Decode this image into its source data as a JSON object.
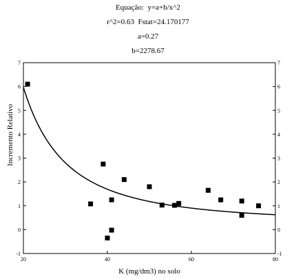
{
  "header": {
    "equation": "Equação:  y=a+b/x^2",
    "stats": "r^2=0.63  Fstat=24.170177",
    "a": "a=0.27",
    "b": "b=2278.67"
  },
  "chart_data": {
    "type": "scatter",
    "xlabel": "K (mg/dm3) no solo",
    "ylabel": "Incremento Relativo",
    "xlim": [
      20,
      80
    ],
    "ylim": [
      -1,
      7
    ],
    "xticks": [
      20,
      40,
      60,
      80
    ],
    "yticks": [
      -1,
      0,
      1,
      2,
      3,
      4,
      5,
      6,
      7
    ],
    "right_axis_ticks": true,
    "grid": false,
    "points": [
      {
        "x": 21,
        "y": 6.1
      },
      {
        "x": 36,
        "y": 1.08
      },
      {
        "x": 39,
        "y": 2.75
      },
      {
        "x": 40,
        "y": -0.35
      },
      {
        "x": 41,
        "y": 1.25
      },
      {
        "x": 41,
        "y": -0.02
      },
      {
        "x": 44,
        "y": 2.1
      },
      {
        "x": 50,
        "y": 1.8
      },
      {
        "x": 53,
        "y": 1.03
      },
      {
        "x": 56,
        "y": 1.02
      },
      {
        "x": 57,
        "y": 1.1
      },
      {
        "x": 64,
        "y": 1.65
      },
      {
        "x": 67,
        "y": 1.25
      },
      {
        "x": 72,
        "y": 1.2
      },
      {
        "x": 72,
        "y": 0.6
      },
      {
        "x": 76,
        "y": 1.0
      }
    ],
    "fit": {
      "model": "y=a+b/x^2",
      "a": 0.27,
      "b": 2278.67
    }
  }
}
